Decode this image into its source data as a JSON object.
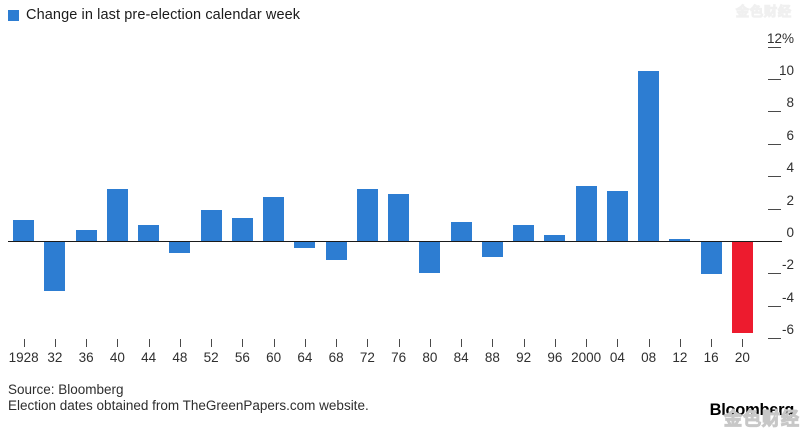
{
  "legend": {
    "label": "Change in last pre-election calendar week",
    "swatch_color": "#2d7dd2"
  },
  "chart_data": {
    "type": "bar",
    "title": "Change in last pre-election calendar week",
    "categories": [
      "1928",
      "32",
      "36",
      "40",
      "44",
      "48",
      "52",
      "56",
      "60",
      "64",
      "68",
      "72",
      "76",
      "80",
      "84",
      "88",
      "92",
      "96",
      "2000",
      "04",
      "08",
      "12",
      "16",
      "20"
    ],
    "values": [
      1.3,
      -3.0,
      0.7,
      3.2,
      1.0,
      -0.7,
      1.9,
      1.4,
      2.7,
      -0.4,
      -1.1,
      3.2,
      2.9,
      -1.9,
      1.2,
      -0.9,
      1.0,
      0.4,
      3.4,
      3.1,
      10.5,
      0.15,
      -2.0,
      -5.6
    ],
    "unit": "%",
    "ylim": [
      -7,
      12
    ],
    "y_ticks": [
      {
        "v": 12,
        "label": "12%"
      },
      {
        "v": 10,
        "label": "10"
      },
      {
        "v": 8,
        "label": "8"
      },
      {
        "v": 6,
        "label": "6"
      },
      {
        "v": 4,
        "label": "4"
      },
      {
        "v": 2,
        "label": "2"
      },
      {
        "v": 0,
        "label": "0"
      },
      {
        "v": -2,
        "label": "-2"
      },
      {
        "v": -4,
        "label": "-4"
      },
      {
        "v": -6,
        "label": "-6"
      }
    ],
    "axis_side": "right",
    "grid": false,
    "bar_color": "#2d7dd2",
    "highlight_color": "#ed1b2e",
    "highlight_index": 23
  },
  "footer": {
    "source_line1": "Source: Bloomberg",
    "source_line2": "Election dates obtained from TheGreenPapers.com website.",
    "brand": "Bloomberg"
  },
  "watermark": {
    "text": "金色财经"
  }
}
